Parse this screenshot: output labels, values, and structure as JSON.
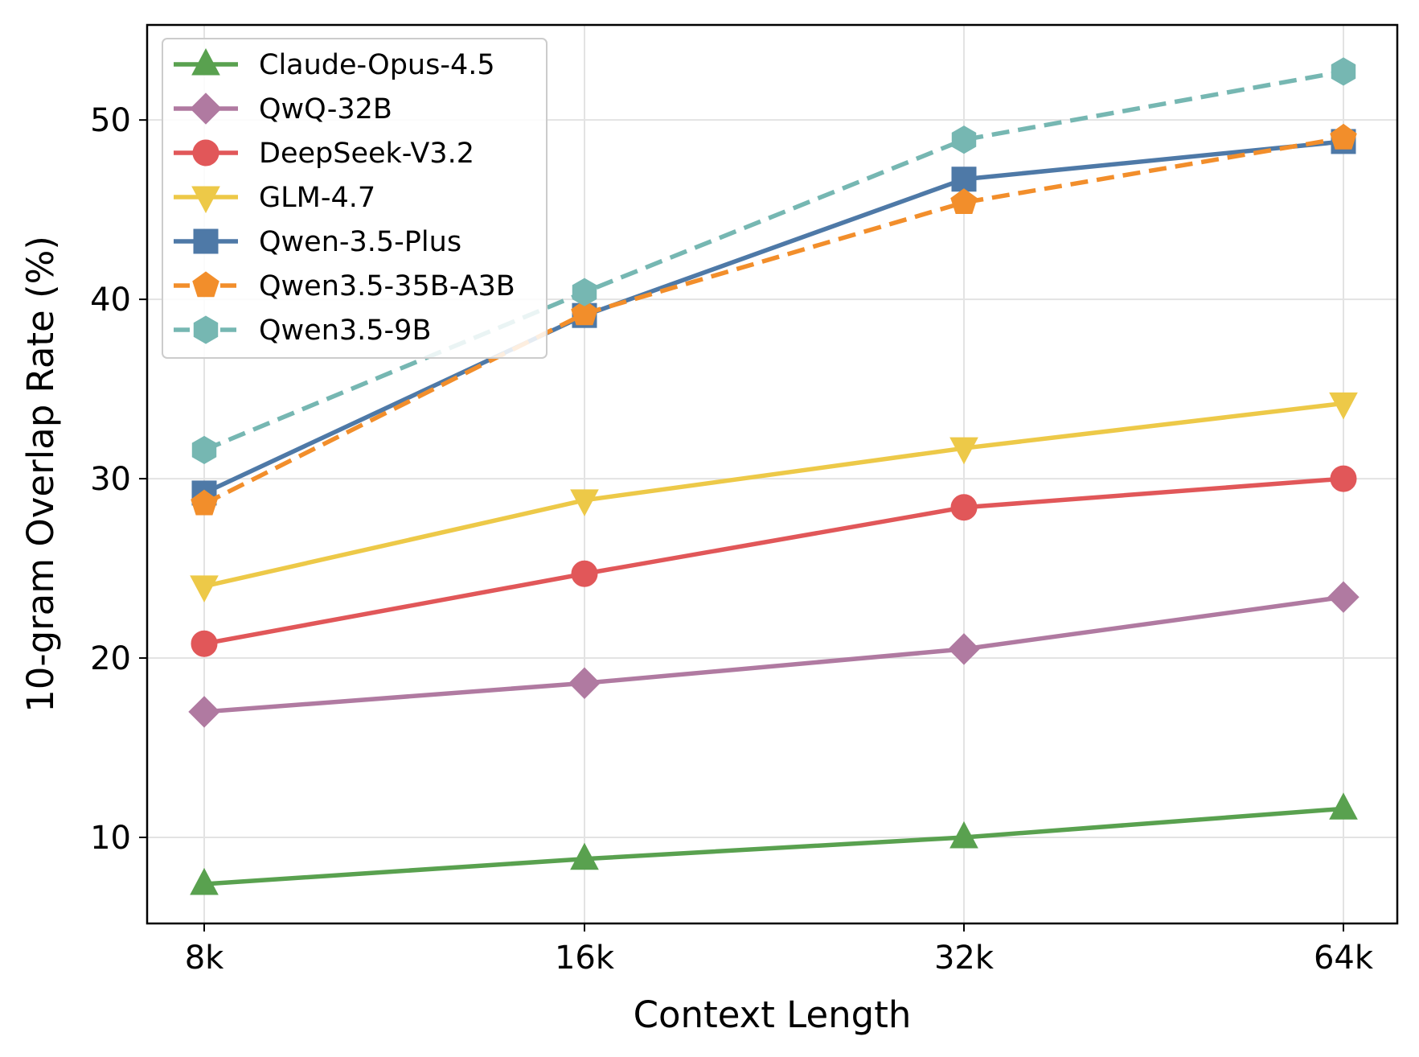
{
  "chart_data": {
    "type": "line",
    "title": "",
    "xlabel": "Context Length",
    "ylabel": "10-gram Overlap Rate (%)",
    "categories": [
      "8k",
      "16k",
      "32k",
      "64k"
    ],
    "ylim": [
      5.2,
      55.3
    ],
    "yticks": [
      10,
      20,
      30,
      40,
      50
    ],
    "grid": true,
    "legend_position": "top-left",
    "series": [
      {
        "name": "Claude-Opus-4.5",
        "color": "#59a14f",
        "marker": "triangle-up",
        "dash": false,
        "values": [
          7.4,
          8.8,
          10.0,
          11.6
        ]
      },
      {
        "name": "QwQ-32B",
        "color": "#b07aa1",
        "marker": "diamond",
        "dash": false,
        "values": [
          17.0,
          18.6,
          20.5,
          23.4
        ]
      },
      {
        "name": "DeepSeek-V3.2",
        "color": "#e15759",
        "marker": "circle",
        "dash": false,
        "values": [
          20.8,
          24.7,
          28.4,
          30.0
        ]
      },
      {
        "name": "GLM-4.7",
        "color": "#edc948",
        "marker": "triangle-down",
        "dash": false,
        "values": [
          24.0,
          28.8,
          31.7,
          34.2
        ]
      },
      {
        "name": "Qwen-3.5-Plus",
        "color": "#4e79a7",
        "marker": "square",
        "dash": false,
        "values": [
          29.2,
          39.1,
          46.7,
          48.8
        ]
      },
      {
        "name": "Qwen3.5-35B-A3B",
        "color": "#f28e2b",
        "marker": "pentagon",
        "dash": true,
        "values": [
          28.6,
          39.2,
          45.4,
          49.0
        ]
      },
      {
        "name": "Qwen3.5-9B",
        "color": "#76b7b2",
        "marker": "hexagon",
        "dash": true,
        "values": [
          31.6,
          40.4,
          48.9,
          52.7
        ]
      }
    ]
  }
}
